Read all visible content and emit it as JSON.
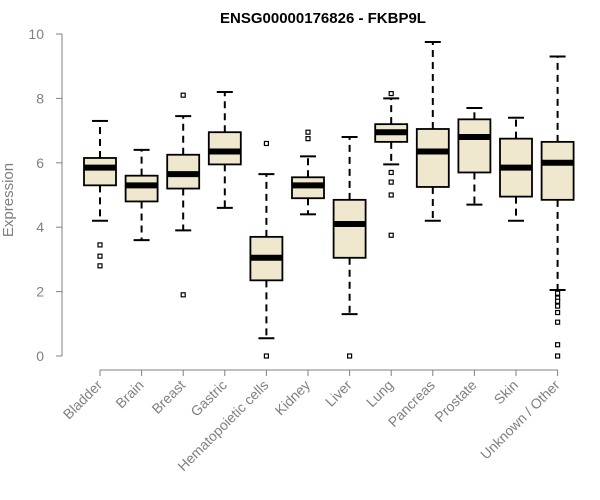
{
  "chart_data": {
    "type": "boxplot",
    "title": "ENSG00000176826 - FKBP9L",
    "xlabel": "",
    "ylabel": "Expression",
    "ylim": [
      0,
      10
    ],
    "yticks": [
      0,
      2,
      4,
      6,
      8,
      10
    ],
    "categories": [
      "Bladder",
      "Brain",
      "Breast",
      "Gastric",
      "Hematopoietic cells",
      "Kidney",
      "Liver",
      "Lung",
      "Pancreas",
      "Prostate",
      "Skin",
      "Unknown / Other"
    ],
    "boxes": [
      {
        "whisker_low": 4.2,
        "q1": 5.3,
        "median": 5.85,
        "q3": 6.15,
        "whisker_high": 7.3,
        "outliers": [
          3.45,
          3.1,
          2.8
        ]
      },
      {
        "whisker_low": 3.6,
        "q1": 4.8,
        "median": 5.3,
        "q3": 5.6,
        "whisker_high": 6.4,
        "outliers": []
      },
      {
        "whisker_low": 3.9,
        "q1": 5.2,
        "median": 5.65,
        "q3": 6.25,
        "whisker_high": 7.45,
        "outliers": [
          8.1,
          1.9
        ]
      },
      {
        "whisker_low": 4.6,
        "q1": 5.95,
        "median": 6.35,
        "q3": 6.95,
        "whisker_high": 8.2,
        "outliers": []
      },
      {
        "whisker_low": 0.55,
        "q1": 2.35,
        "median": 3.05,
        "q3": 3.7,
        "whisker_high": 5.65,
        "outliers": [
          6.6,
          0.0
        ]
      },
      {
        "whisker_low": 4.4,
        "q1": 4.9,
        "median": 5.3,
        "q3": 5.55,
        "whisker_high": 6.2,
        "outliers": [
          6.95,
          6.75
        ]
      },
      {
        "whisker_low": 1.3,
        "q1": 3.05,
        "median": 4.1,
        "q3": 4.85,
        "whisker_high": 6.8,
        "outliers": [
          0.0
        ]
      },
      {
        "whisker_low": 5.95,
        "q1": 6.65,
        "median": 6.95,
        "q3": 7.2,
        "whisker_high": 8.0,
        "outliers": [
          8.15,
          5.7,
          5.4,
          5.0,
          3.75
        ]
      },
      {
        "whisker_low": 4.2,
        "q1": 5.25,
        "median": 6.35,
        "q3": 7.05,
        "whisker_high": 9.75,
        "outliers": []
      },
      {
        "whisker_low": 4.7,
        "q1": 5.7,
        "median": 6.8,
        "q3": 7.35,
        "whisker_high": 7.7,
        "outliers": []
      },
      {
        "whisker_low": 4.2,
        "q1": 4.95,
        "median": 5.85,
        "q3": 6.75,
        "whisker_high": 7.4,
        "outliers": []
      },
      {
        "whisker_low": 2.05,
        "q1": 4.85,
        "median": 6.0,
        "q3": 6.65,
        "whisker_high": 9.3,
        "outliers": [
          1.95,
          1.8,
          1.7,
          1.55,
          1.35,
          1.05,
          0.35,
          0.0
        ]
      }
    ],
    "colors": {
      "box_fill": "#efe8cf",
      "box_stroke": "#000000",
      "median": "#000000",
      "axis": "#808080",
      "title": "#000000",
      "tick_text": "#808080"
    }
  }
}
